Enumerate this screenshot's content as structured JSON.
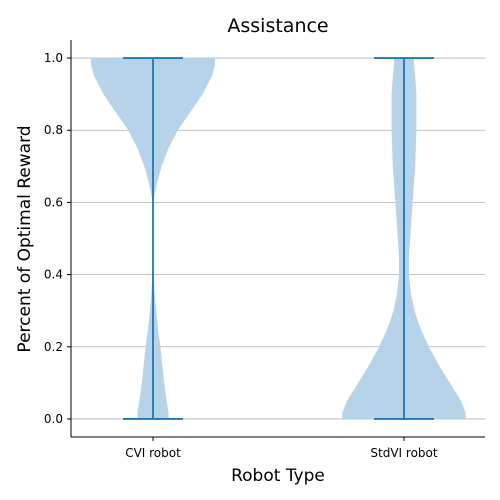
{
  "chart_data": {
    "type": "violin",
    "title": "Assistance",
    "xlabel": "Robot Type",
    "ylabel": "Percent of Optimal Reward",
    "categories": [
      "CVI robot",
      "StdVI robot"
    ],
    "ylim": [
      -0.05,
      1.05
    ],
    "yticks": [
      "0.0",
      "0.2",
      "0.4",
      "0.6",
      "0.8",
      "1.0"
    ],
    "grid": "horizontal",
    "fill_color": "#b7d3e9",
    "line_color": "#1f77b4",
    "series": [
      {
        "category": "CVI robot",
        "min": 0.0,
        "max": 1.0,
        "density_profile": [
          [
            0.0,
            0.25
          ],
          [
            0.02,
            0.25
          ],
          [
            0.05,
            0.22
          ],
          [
            0.1,
            0.18
          ],
          [
            0.15,
            0.15
          ],
          [
            0.2,
            0.12
          ],
          [
            0.25,
            0.08
          ],
          [
            0.3,
            0.05
          ],
          [
            0.35,
            0.025
          ],
          [
            0.4,
            0.012
          ],
          [
            0.5,
            0.004
          ],
          [
            0.55,
            0.003
          ],
          [
            0.6,
            0.006
          ],
          [
            0.65,
            0.06
          ],
          [
            0.7,
            0.14
          ],
          [
            0.75,
            0.25
          ],
          [
            0.8,
            0.4
          ],
          [
            0.85,
            0.6
          ],
          [
            0.9,
            0.8
          ],
          [
            0.95,
            0.95
          ],
          [
            0.98,
            1.0
          ],
          [
            1.0,
            1.0
          ]
        ]
      },
      {
        "category": "StdVI robot",
        "min": 0.0,
        "max": 1.0,
        "density_profile": [
          [
            0.0,
            1.0
          ],
          [
            0.02,
            0.99
          ],
          [
            0.05,
            0.92
          ],
          [
            0.1,
            0.74
          ],
          [
            0.15,
            0.56
          ],
          [
            0.2,
            0.4
          ],
          [
            0.25,
            0.27
          ],
          [
            0.3,
            0.17
          ],
          [
            0.35,
            0.11
          ],
          [
            0.4,
            0.08
          ],
          [
            0.45,
            0.08
          ],
          [
            0.5,
            0.1
          ],
          [
            0.55,
            0.12
          ],
          [
            0.6,
            0.14
          ],
          [
            0.65,
            0.16
          ],
          [
            0.7,
            0.18
          ],
          [
            0.75,
            0.19
          ],
          [
            0.8,
            0.2
          ],
          [
            0.85,
            0.2
          ],
          [
            0.9,
            0.2
          ],
          [
            0.95,
            0.18
          ],
          [
            0.98,
            0.16
          ],
          [
            1.0,
            0.16
          ]
        ]
      }
    ]
  }
}
